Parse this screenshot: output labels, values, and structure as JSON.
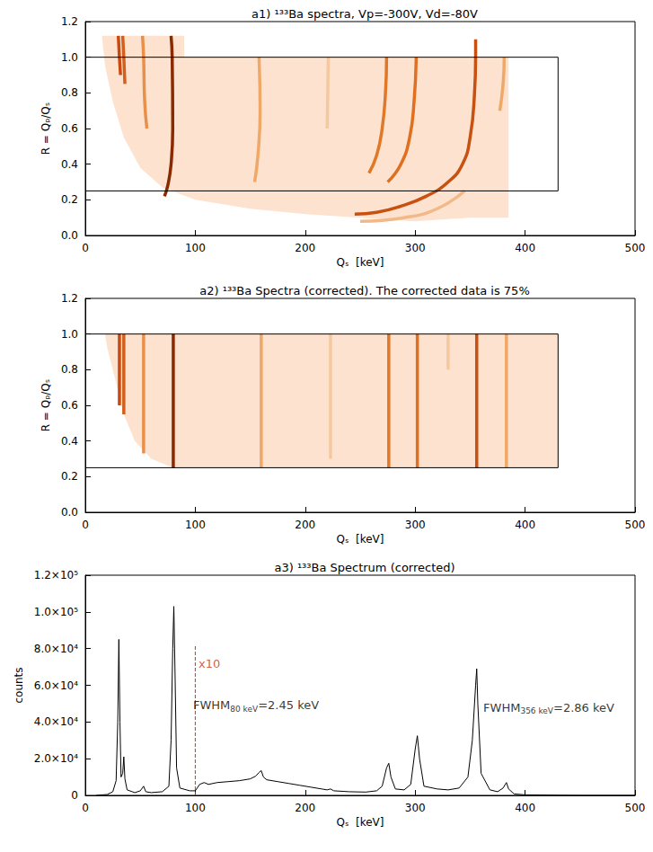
{
  "chart_data": [
    {
      "type": "density",
      "title": "a1) ¹³³Ba spectra, Vp=-300V, Vd=-80V",
      "xlabel": "Qₛ  [keV]",
      "ylabel": "R = Qₚ/Qₛ",
      "xlim": [
        0,
        500
      ],
      "xticks": [
        0,
        100,
        200,
        300,
        400,
        500
      ],
      "ylim": [
        0,
        1.2
      ],
      "yticks": [
        {
          "value": 0,
          "label": "0.0"
        },
        {
          "value": 0.2,
          "label": "0.2"
        },
        {
          "value": 0.4,
          "label": "0.4"
        },
        {
          "value": 0.6,
          "label": "0.6"
        },
        {
          "value": 0.8,
          "label": "0.8"
        },
        {
          "value": 1.0,
          "label": "1.0"
        },
        {
          "value": 1.2,
          "label": "1.2"
        }
      ],
      "grid": false,
      "region": {
        "color": "#fde3cf",
        "points": [
          [
            15,
            1.12
          ],
          [
            90,
            1.12
          ],
          [
            90,
            1.0
          ],
          [
            385,
            1.0
          ],
          [
            385,
            0.1
          ],
          [
            350,
            0.1
          ],
          [
            300,
            0.08
          ],
          [
            250,
            0.1
          ],
          [
            200,
            0.12
          ],
          [
            150,
            0.15
          ],
          [
            100,
            0.2
          ],
          [
            70,
            0.27
          ],
          [
            50,
            0.38
          ],
          [
            35,
            0.55
          ],
          [
            25,
            0.75
          ],
          [
            18,
            0.95
          ]
        ]
      },
      "box": {
        "x": [
          0,
          430
        ],
        "y": [
          0.25,
          1.0
        ]
      },
      "bands": [
        {
          "color": "#c84a10",
          "points": [
            [
              30,
              1.12
            ],
            [
              31,
              1.0
            ],
            [
              32,
              0.9
            ]
          ]
        },
        {
          "color": "#d0601c",
          "points": [
            [
              34,
              1.12
            ],
            [
              35,
              1.0
            ],
            [
              36,
              0.85
            ]
          ]
        },
        {
          "color": "#e8904a",
          "points": [
            [
              52,
              1.12
            ],
            [
              53,
              1.0
            ],
            [
              54,
              0.75
            ],
            [
              56,
              0.6
            ]
          ]
        },
        {
          "color": "#8a2a00",
          "points": [
            [
              78,
              1.12
            ],
            [
              79,
              1.0
            ],
            [
              79.5,
              0.6
            ],
            [
              78,
              0.4
            ],
            [
              75,
              0.28
            ],
            [
              72,
              0.22
            ]
          ]
        },
        {
          "color": "#f0a868",
          "points": [
            [
              158,
              1.0
            ],
            [
              159,
              0.7
            ],
            [
              157,
              0.45
            ],
            [
              154,
              0.3
            ]
          ]
        },
        {
          "color": "#f6c8a0",
          "points": [
            [
              221,
              1.0
            ],
            [
              220,
              0.6
            ]
          ]
        },
        {
          "color": "#e07828",
          "points": [
            [
              274,
              1.0
            ],
            [
              273,
              0.8
            ],
            [
              270,
              0.6
            ],
            [
              265,
              0.45
            ],
            [
              258,
              0.35
            ]
          ]
        },
        {
          "color": "#e07020",
          "points": [
            [
              301,
              1.0
            ],
            [
              299,
              0.75
            ],
            [
              295,
              0.55
            ],
            [
              287,
              0.4
            ],
            [
              275,
              0.3
            ]
          ]
        },
        {
          "color": "#c85010",
          "points": [
            [
              355,
              1.1
            ],
            [
              355,
              1.0
            ],
            [
              354,
              0.8
            ],
            [
              350,
              0.55
            ],
            [
              343,
              0.4
            ],
            [
              330,
              0.3
            ],
            [
              310,
              0.22
            ],
            [
              285,
              0.16
            ],
            [
              265,
              0.13
            ],
            [
              245,
              0.12
            ]
          ]
        },
        {
          "color": "#f2b888",
          "points": [
            [
              345,
              0.25
            ],
            [
              320,
              0.15
            ],
            [
              290,
              0.1
            ],
            [
              250,
              0.08
            ]
          ]
        },
        {
          "color": "#f0a868",
          "points": [
            [
              381,
              1.0
            ],
            [
              380,
              0.85
            ],
            [
              377,
              0.7
            ]
          ]
        }
      ]
    },
    {
      "type": "density",
      "title": "a2) ¹³³Ba Spectra (corrected). The corrected data is 75%",
      "xlabel": "Qₛ  [keV]",
      "ylabel": "R = Qₚ/Qₛ",
      "xlim": [
        0,
        500
      ],
      "xticks": [
        0,
        100,
        200,
        300,
        400,
        500
      ],
      "ylim": [
        0,
        1.2
      ],
      "yticks": [
        {
          "value": 0,
          "label": "0.0"
        },
        {
          "value": 0.2,
          "label": "0.2"
        },
        {
          "value": 0.4,
          "label": "0.4"
        },
        {
          "value": 0.6,
          "label": "0.6"
        },
        {
          "value": 0.8,
          "label": "0.8"
        },
        {
          "value": 1.0,
          "label": "1.0"
        },
        {
          "value": 1.2,
          "label": "1.2"
        }
      ],
      "grid": false,
      "region": {
        "color": "#fde3cf",
        "points": [
          [
            18,
            1.0
          ],
          [
            430,
            1.0
          ],
          [
            430,
            0.25
          ],
          [
            80,
            0.25
          ],
          [
            60,
            0.3
          ],
          [
            45,
            0.4
          ],
          [
            35,
            0.55
          ],
          [
            27,
            0.75
          ],
          [
            20,
            0.92
          ]
        ]
      },
      "box": {
        "x": [
          0,
          430
        ],
        "y": [
          0.25,
          1.0
        ]
      },
      "bands": [
        {
          "color": "#c84a10",
          "points": [
            [
              31,
              0.6
            ],
            [
              31,
              1.0
            ]
          ]
        },
        {
          "color": "#d0601c",
          "points": [
            [
              35,
              0.55
            ],
            [
              35,
              1.0
            ]
          ]
        },
        {
          "color": "#e8904a",
          "points": [
            [
              53,
              0.33
            ],
            [
              53,
              1.0
            ]
          ]
        },
        {
          "color": "#8a2a00",
          "points": [
            [
              80,
              0.25
            ],
            [
              80,
              1.0
            ]
          ]
        },
        {
          "color": "#f0a868",
          "points": [
            [
              160,
              0.25
            ],
            [
              160,
              1.0
            ]
          ]
        },
        {
          "color": "#f6c8a0",
          "points": [
            [
              223,
              0.3
            ],
            [
              223,
              1.0
            ]
          ]
        },
        {
          "color": "#e07828",
          "points": [
            [
              276,
              0.25
            ],
            [
              276,
              1.0
            ]
          ]
        },
        {
          "color": "#e07020",
          "points": [
            [
              302,
              0.25
            ],
            [
              302,
              1.0
            ]
          ]
        },
        {
          "color": "#f6c8a0",
          "points": [
            [
              330,
              0.8
            ],
            [
              330,
              1.0
            ]
          ]
        },
        {
          "color": "#c85010",
          "points": [
            [
              356,
              0.25
            ],
            [
              356,
              1.0
            ]
          ]
        },
        {
          "color": "#f0a868",
          "points": [
            [
              383,
              0.25
            ],
            [
              383,
              1.0
            ]
          ]
        }
      ]
    },
    {
      "type": "line",
      "title": "a3) ¹³³Ba Spectrum (corrected)",
      "xlabel": "Qₛ  [keV]",
      "ylabel": "counts",
      "xlim": [
        0,
        500
      ],
      "xticks": [
        0,
        100,
        200,
        300,
        400,
        500
      ],
      "ylim": [
        0,
        120000
      ],
      "yticks": [
        0,
        {
          "value": 20000,
          "label": "2.0×10⁴"
        },
        {
          "value": 40000,
          "label": "4.0×10⁴"
        },
        {
          "value": 60000,
          "label": "6.0×10⁴"
        },
        {
          "value": 80000,
          "label": "8.0×10⁴"
        },
        {
          "value": 100000,
          "label": "1.0×10⁵"
        },
        {
          "value": 120000,
          "label": "1.2×10⁵"
        }
      ],
      "grid": false,
      "color": "#000000",
      "x": [
        10,
        20,
        25,
        28,
        29.5,
        30.5,
        31.5,
        32.5,
        34,
        35,
        36,
        38,
        45,
        50,
        53,
        55,
        60,
        70,
        76,
        78,
        79.5,
        80.5,
        81.5,
        83,
        86,
        95,
        100,
        104,
        108,
        112,
        120,
        130,
        140,
        150,
        155,
        158,
        160,
        162,
        165,
        175,
        185,
        195,
        205,
        215,
        220,
        223,
        226,
        240,
        255,
        265,
        270,
        274,
        276,
        278,
        282,
        290,
        296,
        300,
        302,
        304,
        308,
        320,
        330,
        340,
        348,
        352,
        355,
        356,
        357,
        360,
        368,
        375,
        380,
        383,
        385,
        390,
        400,
        430,
        450,
        500
      ],
      "values": [
        0,
        500,
        2000,
        8000,
        40000,
        85000,
        40000,
        10000,
        12000,
        21000,
        9000,
        3000,
        1500,
        2500,
        5000,
        2000,
        1500,
        2000,
        5000,
        30000,
        80000,
        103000,
        70000,
        15000,
        4000,
        2500,
        2500,
        6000,
        7000,
        6000,
        7000,
        7500,
        8000,
        9000,
        10500,
        12500,
        13500,
        10000,
        8500,
        7500,
        6500,
        5500,
        4500,
        3500,
        3000,
        3500,
        2500,
        2000,
        1800,
        2500,
        5000,
        15000,
        17500,
        10000,
        3500,
        3000,
        6000,
        25000,
        32500,
        20000,
        5000,
        3500,
        3000,
        4000,
        10000,
        30000,
        60000,
        69000,
        50000,
        12000,
        3000,
        2000,
        4000,
        7000,
        3500,
        800,
        300,
        100,
        0,
        0
      ],
      "marker_line": {
        "x": 100,
        "y": [
          0,
          82000
        ],
        "color": "#c0392b",
        "line_style": "dashed"
      },
      "annotations": [
        {
          "text": "x10",
          "x": 103,
          "y": 72000,
          "color": "#c0392b"
        },
        {
          "text": "FWHM",
          "subscript": "80 keV",
          "after": "=2.45 keV",
          "x": 98,
          "y": 49000,
          "color": "#000000"
        },
        {
          "text": "FWHM",
          "subscript": "356 keV",
          "after": "=2.86 keV",
          "x": 362,
          "y": 48000,
          "color": "#000000"
        }
      ]
    }
  ]
}
